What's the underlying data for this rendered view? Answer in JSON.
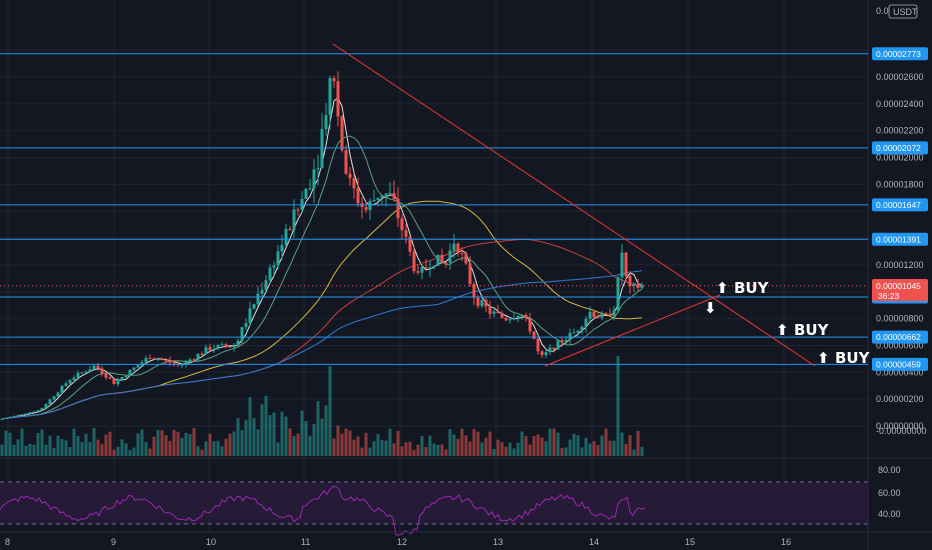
{
  "header": {
    "currency_label": "USDT",
    "top_price": "0.0"
  },
  "price_tags": [
    {
      "label": "0.00002773",
      "value": 2.773e-05,
      "kind": "level"
    },
    {
      "label": "0.00002072",
      "value": 2.072e-05,
      "kind": "level"
    },
    {
      "label": "0.00001647",
      "value": 1.647e-05,
      "kind": "level"
    },
    {
      "label": "0.00001391",
      "value": 1.391e-05,
      "kind": "level"
    },
    {
      "label": "0.00000961",
      "value": 9.61e-06,
      "kind": "level"
    },
    {
      "label": "0.00000662",
      "value": 6.62e-06,
      "kind": "level"
    },
    {
      "label": "0.00000459",
      "value": 4.59e-06,
      "kind": "level"
    }
  ],
  "current_price": {
    "label": "0.00001045",
    "value": 1.045e-05,
    "countdown": "36:23",
    "color": "#ef5350"
  },
  "y_ticks": [
    "0.00002600",
    "0.00002400",
    "0.00002200",
    "0.00002000",
    "0.00001800",
    "0.00001400",
    "0.00001200",
    "0.00000800",
    "0.00000600",
    "0.00000400",
    "0.00000200",
    "0.00000000",
    "-0.00000000"
  ],
  "x_ticks": [
    "8",
    "9",
    "10",
    "11",
    "12",
    "13",
    "14",
    "15",
    "16"
  ],
  "rsi_ticks": [
    "80.00",
    "60.00",
    "40.00"
  ],
  "annotations": [
    {
      "text": "BUY",
      "arrow": "up"
    },
    {
      "text": "BUY",
      "arrow": "up"
    },
    {
      "text": "BUY",
      "arrow": "up"
    },
    {
      "text": "",
      "arrow": "down"
    }
  ],
  "colors": {
    "background": "#131722",
    "level_line": "#2196f3",
    "tag_fill": "#2196f3",
    "trend_line": "#e53935",
    "up_candle": "#26a69a",
    "down_candle": "#ef5350",
    "rsi_line": "#9c27b0",
    "rsi_band": "#2a1c3b",
    "ma_yellow": "#d4b93c",
    "ma_red": "#c2413b",
    "ma_blue": "#2f7bd6",
    "ma_green": "#5aa37a",
    "ma_white": "#e0e0e0"
  },
  "chart_data": {
    "type": "candlestick",
    "x_labels": [
      "8",
      "9",
      "10",
      "11",
      "12",
      "13",
      "14",
      "15",
      "16"
    ],
    "ylim": [
      -2e-07,
      2.9e-05
    ],
    "ohlc_daily_approx": [
      {
        "day": "8",
        "open": 4e-07,
        "high": 2.8e-06,
        "low": 1e-07,
        "close": 2.4e-06
      },
      {
        "day": "9",
        "open": 2.5e-06,
        "high": 4.8e-06,
        "low": 1.8e-06,
        "close": 4e-06
      },
      {
        "day": "10",
        "open": 4e-06,
        "high": 1.22e-05,
        "low": 3.8e-06,
        "close": 1.2e-05
      },
      {
        "day": "11",
        "open": 1.2e-05,
        "high": 2.77e-05,
        "low": 9.8e-06,
        "close": 1.85e-05
      },
      {
        "day": "12",
        "open": 1.85e-05,
        "high": 1.9e-05,
        "low": 9e-06,
        "close": 1.08e-05
      },
      {
        "day": "13",
        "open": 1.08e-05,
        "high": 1.15e-05,
        "low": 4.8e-06,
        "close": 7.8e-06
      },
      {
        "day": "14",
        "open": 7.8e-06,
        "high": 1.39e-05,
        "low": 6.8e-06,
        "close": 1.04e-05
      }
    ],
    "horizontal_levels": [
      2.773e-05,
      2.072e-05,
      1.647e-05,
      1.391e-05,
      9.61e-06,
      6.62e-06,
      4.59e-06
    ],
    "rsi_levels": [
      80,
      60,
      40
    ]
  }
}
